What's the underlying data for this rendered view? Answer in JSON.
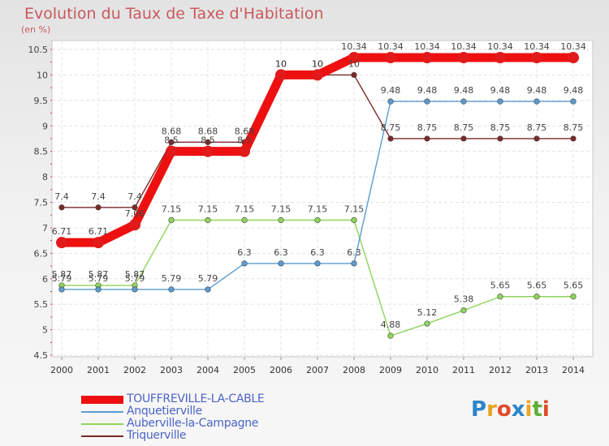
{
  "header": {
    "title": "Evolution du Taux de Taxe d'Habitation",
    "subtitle": "(en %)"
  },
  "logo": {
    "text": "Proxiti",
    "letter_colors": [
      "#2c86c9",
      "#e8a321",
      "#e04b2a",
      "#2c86c9",
      "#f0a420",
      "#5fae34",
      "#e04b2a"
    ]
  },
  "chart_data": {
    "type": "line",
    "title": "Evolution du Taux de Taxe d'Habitation",
    "ylabel": "(en %)",
    "xlabel": "",
    "ylim": [
      4.5,
      10.5
    ],
    "yticks": [
      4.5,
      5,
      5.5,
      6,
      6.5,
      7,
      7.5,
      8,
      8.5,
      9,
      9.5,
      10,
      10.5
    ],
    "x": [
      "2000",
      "2001",
      "2002",
      "2003",
      "2004",
      "2005",
      "2006",
      "2007",
      "2008",
      "2009",
      "2010",
      "2011",
      "2012",
      "2013",
      "2014"
    ],
    "grid": true,
    "legend_position": "bottom-left",
    "series": [
      {
        "name": "TOUFFREVILLE-LA-CABLE",
        "color": "#ee1010",
        "values": [
          6.71,
          6.71,
          7.06,
          8.5,
          8.5,
          8.5,
          10,
          10,
          10.34,
          10.34,
          10.34,
          10.34,
          10.34,
          10.34,
          10.34
        ],
        "labels": [
          "6.71",
          "6.71",
          "7.06",
          "8.5",
          "8.5",
          "8.5",
          "10",
          "10",
          "10.34",
          "10.34",
          "10.34",
          "10.34",
          "10.34",
          "10.34",
          "10.34"
        ]
      },
      {
        "name": "Anquetierville",
        "color": "#5b9bd0",
        "values": [
          5.79,
          5.79,
          5.79,
          5.79,
          5.79,
          6.3,
          6.3,
          6.3,
          6.3,
          9.48,
          9.48,
          9.48,
          9.48,
          9.48,
          9.48
        ],
        "labels": [
          "5.79",
          "5.79",
          "5.79",
          "5.79",
          "5.79",
          "6.3",
          "6.3",
          "6.3",
          "6.3",
          "9.48",
          "9.48",
          "9.48",
          "9.48",
          "9.48",
          "9.48"
        ]
      },
      {
        "name": "Auberville-la-Campagne",
        "color": "#8fd45a",
        "values": [
          5.87,
          5.87,
          5.87,
          7.15,
          7.15,
          7.15,
          7.15,
          7.15,
          7.15,
          4.88,
          5.12,
          5.38,
          5.65,
          5.65,
          5.65
        ],
        "labels": [
          "5.87",
          "5.87",
          "5.87",
          "7.15",
          "7.15",
          "7.15",
          "7.15",
          "7.15",
          "7.15",
          "4.88",
          "5.12",
          "5.38",
          "5.65",
          "5.65",
          "5.65"
        ]
      },
      {
        "name": "Triquerville",
        "color": "#7a2a2a",
        "values": [
          7.4,
          7.4,
          7.4,
          8.68,
          8.68,
          8.68,
          10,
          10,
          10,
          8.75,
          8.75,
          8.75,
          8.75,
          8.75,
          8.75
        ],
        "labels": [
          "7.4",
          "7.4",
          "7.4",
          "8.68",
          "8.68",
          "8.68",
          "10",
          "10",
          "10",
          "8.75",
          "8.75",
          "8.75",
          "8.75",
          "8.75",
          "8.75"
        ]
      }
    ]
  }
}
